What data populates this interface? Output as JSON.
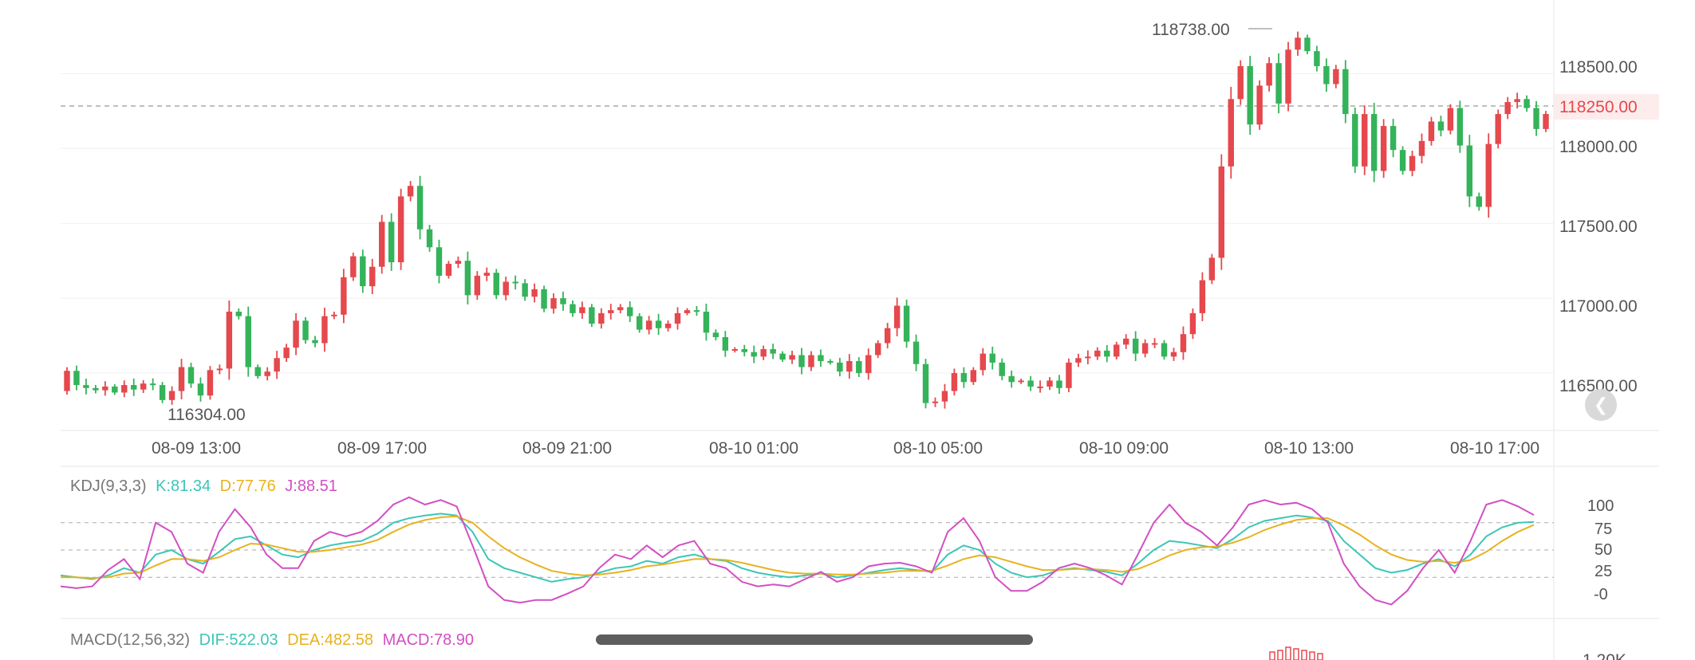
{
  "colors": {
    "up": "#e5484d",
    "down": "#34b35a",
    "k": "#3cc6b6",
    "d": "#e8b21e",
    "j": "#d24fc3",
    "axis_text": "#555555",
    "current_price": "#e5484d"
  },
  "price_axis": {
    "labels": [
      "118500.00",
      "118000.00",
      "117500.00",
      "117000.00",
      "116500.00"
    ],
    "current_price": "118250.00",
    "high_label": "118738.00",
    "low_label": "116304.00"
  },
  "time_axis": {
    "labels": [
      "08-09 13:00",
      "08-09 17:00",
      "08-09 21:00",
      "08-10 01:00",
      "08-10 05:00",
      "08-10 09:00",
      "08-10 13:00",
      "08-10 17:00"
    ]
  },
  "kdj": {
    "name": "KDJ(9,3,3)",
    "k_label": "K:81.34",
    "d_label": "D:77.76",
    "j_label": "J:88.51",
    "axis_labels": [
      "100",
      "75",
      "50",
      "25",
      "-0"
    ]
  },
  "macd": {
    "name": "MACD(12,56,32)",
    "dif_label": "DIF:522.03",
    "dea_label": "DEA:482.58",
    "macd_label": "MACD:78.90",
    "axis_label": "1.20K"
  },
  "reset_icon": "chevron-left-bar-icon",
  "chart_data": {
    "type": "candlestick",
    "interval_minutes": 15,
    "ylim": [
      116250,
      118800
    ],
    "series": [
      {
        "name": "K",
        "values": [
          22,
          20,
          18,
          22,
          30,
          25,
          45,
          50,
          40,
          35,
          48,
          62,
          65,
          55,
          45,
          42,
          50,
          55,
          58,
          60,
          68,
          80,
          85,
          88,
          90,
          88,
          70,
          40,
          30,
          25,
          20,
          15,
          18,
          20,
          25,
          30,
          32,
          38,
          35,
          42,
          45,
          40,
          38,
          30,
          25,
          22,
          20,
          22,
          24,
          20,
          22,
          25,
          28,
          30,
          28,
          26,
          45,
          55,
          50,
          35,
          25,
          20,
          22,
          28,
          30,
          28,
          26,
          22,
          35,
          50,
          60,
          58,
          55,
          52,
          62,
          75,
          82,
          85,
          88,
          86,
          82,
          60,
          45,
          30,
          25,
          28,
          35,
          40,
          32,
          45,
          65,
          75,
          80,
          81
        ]
      },
      {
        "name": "D",
        "values": [
          20,
          20,
          19,
          20,
          24,
          25,
          33,
          40,
          40,
          38,
          42,
          50,
          57,
          56,
          52,
          48,
          48,
          50,
          53,
          56,
          61,
          70,
          78,
          83,
          86,
          87,
          80,
          65,
          52,
          42,
          34,
          27,
          24,
          22,
          23,
          25,
          28,
          32,
          34,
          37,
          40,
          40,
          39,
          36,
          32,
          28,
          25,
          24,
          24,
          23,
          23,
          24,
          25,
          27,
          27,
          27,
          33,
          40,
          44,
          42,
          37,
          32,
          28,
          28,
          29,
          29,
          28,
          26,
          29,
          36,
          44,
          50,
          53,
          54,
          58,
          64,
          72,
          78,
          83,
          85,
          85,
          77,
          67,
          55,
          45,
          39,
          37,
          38,
          36,
          39,
          48,
          60,
          70,
          77.76
        ]
      },
      {
        "name": "J",
        "values": [
          10,
          8,
          10,
          28,
          40,
          18,
          80,
          70,
          35,
          25,
          70,
          95,
          75,
          45,
          30,
          30,
          60,
          70,
          65,
          70,
          82,
          100,
          108,
          100,
          105,
          98,
          55,
          10,
          -5,
          -8,
          -5,
          -5,
          2,
          10,
          30,
          45,
          40,
          55,
          42,
          55,
          60,
          35,
          30,
          15,
          10,
          12,
          10,
          18,
          26,
          15,
          20,
          32,
          35,
          36,
          32,
          25,
          70,
          85,
          60,
          20,
          5,
          5,
          15,
          30,
          35,
          30,
          22,
          12,
          45,
          80,
          100,
          80,
          70,
          55,
          75,
          100,
          105,
          100,
          102,
          95,
          80,
          35,
          10,
          -5,
          -10,
          5,
          30,
          50,
          25,
          60,
          100,
          105,
          98,
          88.51
        ]
      }
    ]
  }
}
